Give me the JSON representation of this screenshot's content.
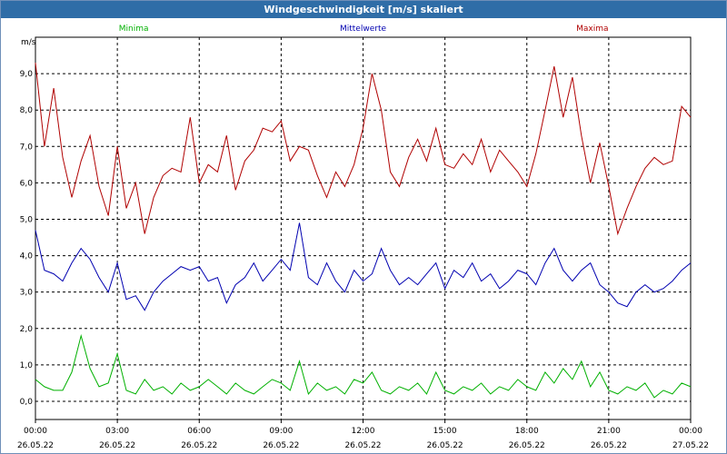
{
  "title": "Windgeschwindigkeit [m/s] skaliert",
  "chart_data": {
    "type": "line",
    "title": "Windgeschwindigkeit [m/s] skaliert",
    "ylabel": "m/s",
    "xlabel": "",
    "ylim": [
      -0.5,
      10.0
    ],
    "xlim": [
      0,
      24
    ],
    "y_ticks": [
      "0,0",
      "1,0",
      "2,0",
      "3,0",
      "4,0",
      "5,0",
      "6,0",
      "7,0",
      "8,0",
      "9,0"
    ],
    "x_ticks": [
      {
        "time": "00:00",
        "date": "26.05.22"
      },
      {
        "time": "03:00",
        "date": "26.05.22"
      },
      {
        "time": "06:00",
        "date": "26.05.22"
      },
      {
        "time": "09:00",
        "date": "26.05.22"
      },
      {
        "time": "12:00",
        "date": "26.05.22"
      },
      {
        "time": "15:00",
        "date": "26.05.22"
      },
      {
        "time": "18:00",
        "date": "26.05.22"
      },
      {
        "time": "21:00",
        "date": "26.05.22"
      },
      {
        "time": "00:00",
        "date": "27.05.22"
      }
    ],
    "grid": true,
    "legend_position": "top",
    "series": [
      {
        "name": "Minima",
        "color": "#00b000",
        "x": [
          0.0,
          0.33,
          0.67,
          1.0,
          1.33,
          1.67,
          2.0,
          2.33,
          2.67,
          3.0,
          3.33,
          3.67,
          4.0,
          4.33,
          4.67,
          5.0,
          5.33,
          5.67,
          6.0,
          6.33,
          6.67,
          7.0,
          7.33,
          7.67,
          8.0,
          8.33,
          8.67,
          9.0,
          9.33,
          9.67,
          10.0,
          10.33,
          10.67,
          11.0,
          11.33,
          11.67,
          12.0,
          12.33,
          12.67,
          13.0,
          13.33,
          13.67,
          14.0,
          14.33,
          14.67,
          15.0,
          15.33,
          15.67,
          16.0,
          16.33,
          16.67,
          17.0,
          17.33,
          17.67,
          18.0,
          18.33,
          18.67,
          19.0,
          19.33,
          19.67,
          20.0,
          20.33,
          20.67,
          21.0,
          21.33,
          21.67,
          22.0,
          22.33,
          22.67,
          23.0,
          23.33,
          23.67,
          24.0
        ],
        "values": [
          0.6,
          0.4,
          0.3,
          0.3,
          0.8,
          1.8,
          0.9,
          0.4,
          0.5,
          1.3,
          0.3,
          0.2,
          0.6,
          0.3,
          0.4,
          0.2,
          0.5,
          0.3,
          0.4,
          0.6,
          0.4,
          0.2,
          0.5,
          0.3,
          0.2,
          0.4,
          0.6,
          0.5,
          0.3,
          1.1,
          0.2,
          0.5,
          0.3,
          0.4,
          0.2,
          0.6,
          0.5,
          0.8,
          0.3,
          0.2,
          0.4,
          0.3,
          0.5,
          0.2,
          0.8,
          0.3,
          0.2,
          0.4,
          0.3,
          0.5,
          0.2,
          0.4,
          0.3,
          0.6,
          0.4,
          0.3,
          0.8,
          0.5,
          0.9,
          0.6,
          1.1,
          0.4,
          0.8,
          0.3,
          0.2,
          0.4,
          0.3,
          0.5,
          0.1,
          0.3,
          0.2,
          0.5,
          0.4
        ]
      },
      {
        "name": "Mittelwerte",
        "color": "#0000b0",
        "x": [
          0.0,
          0.33,
          0.67,
          1.0,
          1.33,
          1.67,
          2.0,
          2.33,
          2.67,
          3.0,
          3.33,
          3.67,
          4.0,
          4.33,
          4.67,
          5.0,
          5.33,
          5.67,
          6.0,
          6.33,
          6.67,
          7.0,
          7.33,
          7.67,
          8.0,
          8.33,
          8.67,
          9.0,
          9.33,
          9.67,
          10.0,
          10.33,
          10.67,
          11.0,
          11.33,
          11.67,
          12.0,
          12.33,
          12.67,
          13.0,
          13.33,
          13.67,
          14.0,
          14.33,
          14.67,
          15.0,
          15.33,
          15.67,
          16.0,
          16.33,
          16.67,
          17.0,
          17.33,
          17.67,
          18.0,
          18.33,
          18.67,
          19.0,
          19.33,
          19.67,
          20.0,
          20.33,
          20.67,
          21.0,
          21.33,
          21.67,
          22.0,
          22.33,
          22.67,
          23.0,
          23.33,
          23.67,
          24.0
        ],
        "values": [
          4.7,
          3.6,
          3.5,
          3.3,
          3.8,
          4.2,
          3.9,
          3.4,
          3.0,
          3.8,
          2.8,
          2.9,
          2.5,
          3.0,
          3.3,
          3.5,
          3.7,
          3.6,
          3.7,
          3.3,
          3.4,
          2.7,
          3.2,
          3.4,
          3.8,
          3.3,
          3.6,
          3.9,
          3.6,
          4.9,
          3.4,
          3.2,
          3.8,
          3.3,
          3.0,
          3.6,
          3.3,
          3.5,
          4.2,
          3.6,
          3.2,
          3.4,
          3.2,
          3.5,
          3.8,
          3.1,
          3.6,
          3.4,
          3.8,
          3.3,
          3.5,
          3.1,
          3.3,
          3.6,
          3.5,
          3.2,
          3.8,
          4.2,
          3.6,
          3.3,
          3.6,
          3.8,
          3.2,
          3.0,
          2.7,
          2.6,
          3.0,
          3.2,
          3.0,
          3.1,
          3.3,
          3.6,
          3.8
        ]
      },
      {
        "name": "Maxima",
        "color": "#b00000",
        "x": [
          0.0,
          0.33,
          0.67,
          1.0,
          1.33,
          1.67,
          2.0,
          2.33,
          2.67,
          3.0,
          3.33,
          3.67,
          4.0,
          4.33,
          4.67,
          5.0,
          5.33,
          5.67,
          6.0,
          6.33,
          6.67,
          7.0,
          7.33,
          7.67,
          8.0,
          8.33,
          8.67,
          9.0,
          9.33,
          9.67,
          10.0,
          10.33,
          10.67,
          11.0,
          11.33,
          11.67,
          12.0,
          12.33,
          12.67,
          13.0,
          13.33,
          13.67,
          14.0,
          14.33,
          14.67,
          15.0,
          15.33,
          15.67,
          16.0,
          16.33,
          16.67,
          17.0,
          17.33,
          17.67,
          18.0,
          18.33,
          18.67,
          19.0,
          19.33,
          19.67,
          20.0,
          20.33,
          20.67,
          21.0,
          21.33,
          21.67,
          22.0,
          22.33,
          22.67,
          23.0,
          23.33,
          23.67,
          24.0
        ],
        "values": [
          9.3,
          7.0,
          8.6,
          6.7,
          5.6,
          6.6,
          7.3,
          5.9,
          5.1,
          7.0,
          5.3,
          6.0,
          4.6,
          5.6,
          6.2,
          6.4,
          6.3,
          7.8,
          6.0,
          6.5,
          6.3,
          7.3,
          5.8,
          6.6,
          6.9,
          7.5,
          7.4,
          7.7,
          6.6,
          7.0,
          6.9,
          6.2,
          5.6,
          6.3,
          5.9,
          6.5,
          7.5,
          9.0,
          8.0,
          6.3,
          5.9,
          6.7,
          7.2,
          6.6,
          7.5,
          6.5,
          6.4,
          6.8,
          6.5,
          7.2,
          6.3,
          6.9,
          6.6,
          6.3,
          5.9,
          6.8,
          8.0,
          9.2,
          7.8,
          8.9,
          7.3,
          6.0,
          7.1,
          5.9,
          4.6,
          5.3,
          5.9,
          6.4,
          6.7,
          6.5,
          6.6,
          8.1,
          7.8
        ]
      }
    ]
  }
}
